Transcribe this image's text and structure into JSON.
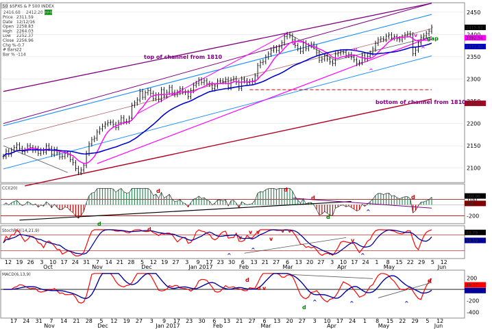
{
  "header": {
    "symbol_box": "50",
    "symbol": "$SPX",
    "title": "S & P 500 INDEX",
    "last": "2416.68",
    "last2": "2412.20",
    "change_badge": "73"
  },
  "info": [
    {
      "k": "Price",
      "v": "2311.59"
    },
    {
      "k": "Date",
      "v": "12/12/16"
    },
    {
      "k": "Open",
      "v": "2258.83"
    },
    {
      "k": "High",
      "v": "2264.03"
    },
    {
      "k": "Low",
      "v": "2252.37"
    },
    {
      "k": "Close",
      "v": "2256.96"
    },
    {
      "k": "Chg %",
      "v": "-0.7"
    },
    {
      "k": "# Bars",
      "v": "22"
    },
    {
      "k": "Bar %",
      "v": "-114"
    }
  ],
  "colors": {
    "bars": "#000000",
    "ma_fast": "#ff00ff",
    "ma_slow": "#0000cc",
    "channel_purple": "#800080",
    "channel_blue": "#1e90ff",
    "channel_red": "#b00020",
    "cci_hist_pos": "#2e8b57",
    "cci_hist_neg": "#cc0000",
    "rsi_red": "#ff0000",
    "rsi_blue": "#000099",
    "macd_red": "#ff0000",
    "macd_blue": "#000099"
  },
  "chart_data": [
    {
      "type": "line",
      "panel": "price",
      "ylim": [
        2075,
        2465
      ],
      "y_ticks": [
        2100,
        2150,
        2200,
        2250,
        2300,
        2350,
        2400,
        2450
      ],
      "right_badges": [
        {
          "label": "2415.82",
          "color": "#000000"
        },
        {
          "label": "2392.54",
          "color": "#ff00ff"
        },
        {
          "label": "2372.80",
          "color": "#0000cc"
        },
        {
          "label": "2245.36",
          "color": "#b00020"
        }
      ],
      "annotations": [
        {
          "text": "top of channel from 1810",
          "color": "#800080"
        },
        {
          "text": "bottom of channel from 1810",
          "color": "#800080"
        },
        {
          "text": "gap",
          "color": "#008000"
        },
        {
          "text": "v",
          "color": "#ff00ff"
        },
        {
          "text": "v",
          "color": "#ff00ff"
        },
        {
          "text": "v",
          "color": "#ff00ff"
        },
        {
          "text": "^",
          "color": "#ff00ff"
        },
        {
          "text": "^",
          "color": "#ff00ff"
        }
      ],
      "closes": [
        2126,
        2138,
        2131,
        2140,
        2146,
        2152,
        2144,
        2137,
        2140,
        2150,
        2146,
        2140,
        2144,
        2133,
        2140,
        2136,
        2150,
        2144,
        2131,
        2142,
        2134,
        2125,
        2126,
        2133,
        2130,
        2119,
        2112,
        2099,
        2090,
        2096,
        2106,
        2133,
        2154,
        2164,
        2167,
        2181,
        2188,
        2194,
        2199,
        2202,
        2203,
        2198,
        2191,
        2202,
        2213,
        2204,
        2205,
        2212,
        2241,
        2246,
        2253,
        2272,
        2259,
        2269,
        2274,
        2268,
        2256,
        2264,
        2254,
        2276,
        2262,
        2270,
        2281,
        2270,
        2265,
        2270,
        2278,
        2271,
        2270,
        2260,
        2274,
        2286,
        2290,
        2298,
        2292,
        2296,
        2290,
        2288,
        2278,
        2284,
        2295,
        2296,
        2294,
        2299,
        2281,
        2298,
        2301,
        2293,
        2279,
        2300,
        2296,
        2292,
        2294,
        2296,
        2307,
        2330,
        2337,
        2339,
        2349,
        2356,
        2365,
        2370,
        2364,
        2372,
        2381,
        2395,
        2400,
        2397,
        2388,
        2375,
        2368,
        2362,
        2381,
        2368,
        2375,
        2378,
        2372,
        2359,
        2342,
        2345,
        2352,
        2345,
        2338,
        2335,
        2356,
        2358,
        2361,
        2360,
        2353,
        2355,
        2349,
        2343,
        2335,
        2337,
        2353,
        2345,
        2351,
        2358,
        2367,
        2380,
        2388,
        2390,
        2389,
        2396,
        2399,
        2392,
        2395,
        2390,
        2388,
        2394,
        2399,
        2402,
        2399,
        2357,
        2365,
        2381,
        2394,
        2397,
        2402,
        2407,
        2416
      ]
    },
    {
      "type": "bar",
      "panel": "CCI(20)",
      "ylim": [
        -320,
        330
      ],
      "y_ticks": [
        -200,
        100
      ],
      "right_badges": [
        {
          "label": "160.96",
          "color": "#000000"
        },
        {
          "label": "100",
          "color": "#800000"
        }
      ],
      "annotations": [
        {
          "text": "d",
          "color": "#cc0000"
        },
        {
          "text": "d",
          "color": "#cc0000"
        },
        {
          "text": "d",
          "color": "#cc0000"
        },
        {
          "text": "d",
          "color": "#cc0000"
        },
        {
          "text": "d",
          "color": "#008000"
        },
        {
          "text": "d",
          "color": "#008000"
        },
        {
          "text": "^",
          "color": "#0000cc"
        }
      ]
    },
    {
      "type": "line",
      "panel": "StochRSI(14,21,9)",
      "ylim": [
        -5,
        105
      ],
      "right_badges": [
        {
          "label": "89.79",
          "color": "#000000"
        },
        {
          "label": "59.19",
          "color": "#000099"
        }
      ],
      "annotations": [
        {
          "text": "d",
          "color": "#cc0000"
        },
        {
          "text": "v",
          "color": "#cc0000"
        },
        {
          "text": "v",
          "color": "#cc0000"
        },
        {
          "text": "v",
          "color": "#cc0000"
        },
        {
          "text": "v",
          "color": "#cc0000"
        },
        {
          "text": "v",
          "color": "#cc0000"
        },
        {
          "text": "v",
          "color": "#cc0000"
        },
        {
          "text": "v",
          "color": "#cc0000"
        },
        {
          "text": "^",
          "color": "#0000cc"
        },
        {
          "text": "^",
          "color": "#0000cc"
        },
        {
          "text": "^",
          "color": "#0000cc"
        },
        {
          "text": "^",
          "color": "#0000cc"
        }
      ]
    },
    {
      "type": "line",
      "panel": "MACD(6,13,9)",
      "ylim": [
        -480,
        290
      ],
      "y_ticks": [
        -200,
        -400,
        200
      ],
      "right_badges": [
        {
          "label": "49.77",
          "color": "#ff0000"
        },
        {
          "label": "",
          "color": "#000099"
        }
      ],
      "annotations": [
        {
          "text": "d",
          "color": "#cc0000"
        },
        {
          "text": "d",
          "color": "#cc0000"
        },
        {
          "text": "v",
          "color": "#cc0000"
        },
        {
          "text": "d",
          "color": "#cc0000"
        },
        {
          "text": "d",
          "color": "#008000"
        },
        {
          "text": "^",
          "color": "#0000cc"
        },
        {
          "text": "^",
          "color": "#0000cc"
        },
        {
          "text": "^",
          "color": "#0000cc"
        }
      ]
    }
  ],
  "x_axis_rsi": {
    "dates": [
      "12",
      "19",
      "26",
      "3",
      "10",
      "17",
      "24",
      "31",
      "7",
      "14",
      "21",
      "28",
      "5",
      "12",
      "19",
      "27",
      "3",
      "9",
      "17",
      "23",
      "30",
      "6",
      "13",
      "21",
      "27",
      "6",
      "13",
      "20",
      "27",
      "3",
      "10",
      "17",
      "24",
      "1",
      "8",
      "15",
      "22",
      "29",
      "5",
      "12"
    ],
    "months": [
      "Oct",
      "Nov",
      "Dec",
      "Jan 2017",
      "Feb",
      "Mar",
      "Apr",
      "May",
      "Jun"
    ]
  },
  "x_axis_macd": {
    "dates": [
      "17",
      "24",
      "31",
      "7",
      "14",
      "21",
      "28",
      "5",
      "12",
      "19",
      "27",
      "3",
      "9",
      "17",
      "23",
      "30",
      "6",
      "13",
      "21",
      "27",
      "6",
      "13",
      "20",
      "27",
      "3",
      "10",
      "17",
      "24",
      "1",
      "8",
      "15",
      "22",
      "29",
      "5",
      "12"
    ],
    "months": [
      "Nov",
      "Dec",
      "Jan 2017",
      "Feb",
      "Mar",
      "Apr",
      "May",
      "Jun"
    ]
  }
}
